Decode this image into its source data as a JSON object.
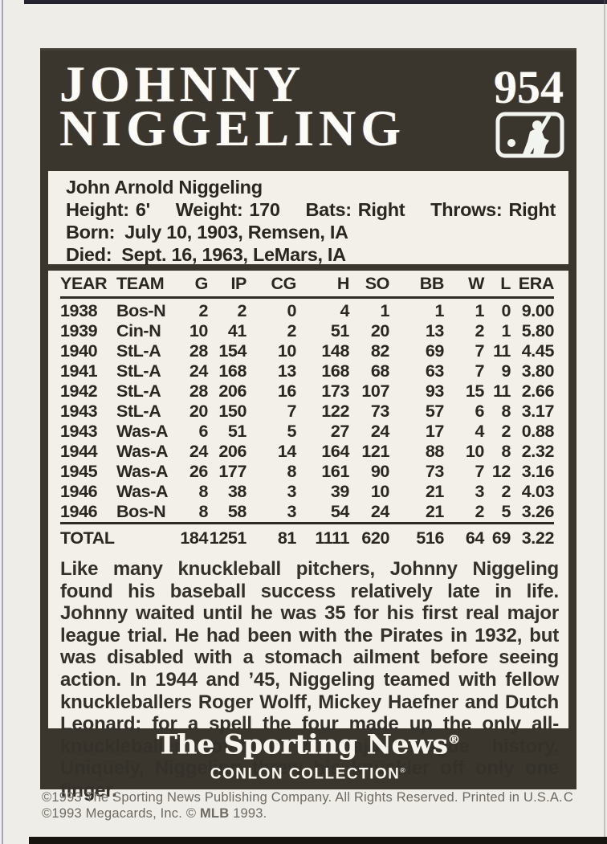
{
  "card": {
    "number": "954",
    "name_line1": "JOHNNY",
    "name_line2": "NIGGELING",
    "bio": {
      "full_name": "John Arnold Niggeling",
      "height_label": "Height:",
      "height_value": "6'",
      "weight_label": "Weight:",
      "weight_value": "170",
      "bats_label": "Bats:",
      "bats_value": "Right",
      "throws_label": "Throws:",
      "throws_value": "Right",
      "born_label": "Born:",
      "born_value": "July 10, 1903, Remsen, IA",
      "died_label": "Died:",
      "died_value": "Sept. 16, 1963, LeMars, IA"
    },
    "stats": {
      "type": "table",
      "columns": [
        "YEAR",
        "TEAM",
        "G",
        "IP",
        "CG",
        "H",
        "SO",
        "BB",
        "W",
        "L",
        "ERA"
      ],
      "rows": [
        [
          "1938",
          "Bos-N",
          "2",
          "2",
          "0",
          "4",
          "1",
          "1",
          "1",
          "0",
          "9.00"
        ],
        [
          "1939",
          "Cin-N",
          "10",
          "41",
          "2",
          "51",
          "20",
          "13",
          "2",
          "1",
          "5.80"
        ],
        [
          "1940",
          "StL-A",
          "28",
          "154",
          "10",
          "148",
          "82",
          "69",
          "7",
          "11",
          "4.45"
        ],
        [
          "1941",
          "StL-A",
          "24",
          "168",
          "13",
          "168",
          "68",
          "63",
          "7",
          "9",
          "3.80"
        ],
        [
          "1942",
          "StL-A",
          "28",
          "206",
          "16",
          "173",
          "107",
          "93",
          "15",
          "11",
          "2.66"
        ],
        [
          "1943",
          "StL-A",
          "20",
          "150",
          "7",
          "122",
          "73",
          "57",
          "6",
          "8",
          "3.17"
        ],
        [
          "1943",
          "Was-A",
          "6",
          "51",
          "5",
          "27",
          "24",
          "17",
          "4",
          "2",
          "0.88"
        ],
        [
          "1944",
          "Was-A",
          "24",
          "206",
          "14",
          "164",
          "121",
          "88",
          "10",
          "8",
          "2.32"
        ],
        [
          "1945",
          "Was-A",
          "26",
          "177",
          "8",
          "161",
          "90",
          "73",
          "7",
          "12",
          "3.16"
        ],
        [
          "1946",
          "Was-A",
          "8",
          "38",
          "3",
          "39",
          "10",
          "21",
          "3",
          "2",
          "4.03"
        ],
        [
          "1946",
          "Bos-N",
          "8",
          "58",
          "3",
          "54",
          "24",
          "21",
          "2",
          "5",
          "3.26"
        ]
      ],
      "total_label": "TOTAL",
      "total": [
        "184",
        "1251",
        "81",
        "1111",
        "620",
        "516",
        "64",
        "69",
        "3.22"
      ]
    },
    "summary": "Like many knuckleball pitchers, Johnny Niggeling found his baseball success relatively late in life. Johnny waited until he was 35 for his first real major league trial. He had been with the Pirates in 1932, but was disabled with a stomach ailment before seeing action. In 1944 and ’45, Niggeling teamed with fellow knuckleballers Roger Wolff, Mickey Haefner and Dutch Leonard; for a spell the four made up the only all-knuckleballer rotation in major league history. Uniquely, Niggeling threw his knuckler off only one finger.",
    "footer": {
      "brand": "The Sporting News",
      "brand_reg": "®",
      "collection": "CONLON COLLECTION",
      "collection_reg": "®"
    },
    "copyright": {
      "line1": "©1993 The Sporting News Publishing Company. All Rights Reserved. Printed in U.S.A.",
      "print_code": "C",
      "line2_pre": "©1993 Megacards, Inc. © ",
      "line2_bold": "MLB",
      "line2_post": " 1993."
    },
    "colors": {
      "card_bg": "#3b362d",
      "panel_bg": "#f3f0e9",
      "title_color": "#fcfbf6",
      "text_color": "#2a2621"
    },
    "icons": {
      "mlb_logo": "mlb-batter-logo"
    }
  }
}
